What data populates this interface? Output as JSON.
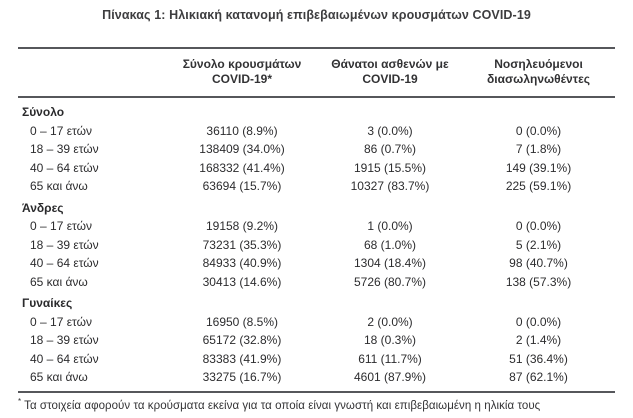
{
  "title": "Πίνακας 1: Ηλικιακή κατανομή επιβεβαιωμένων κρουσμάτων COVID-19",
  "table": {
    "columns": [
      {
        "line1": "Σύνολο κρουσμάτων",
        "line2": "COVID-19*"
      },
      {
        "line1": "Θάνατοι ασθενών με",
        "line2": "COVID-19"
      },
      {
        "line1": "Νοσηλευόμενοι",
        "line2": "διασωληνωθέντες"
      }
    ],
    "sections": [
      {
        "label": "Σύνολο",
        "rows": [
          [
            "0 – 17 ετών",
            "36110 (8.9%)",
            "3 (0.0%)",
            "0 (0.0%)"
          ],
          [
            "18 – 39 ετών",
            "138409 (34.0%)",
            "86 (0.7%)",
            "7 (1.8%)"
          ],
          [
            "40 – 64 ετών",
            "168332 (41.4%)",
            "1915 (15.5%)",
            "149 (39.1%)"
          ],
          [
            "65 και άνω",
            "63694 (15.7%)",
            "10327 (83.7%)",
            "225 (59.1%)"
          ]
        ]
      },
      {
        "label": "Άνδρες",
        "rows": [
          [
            "0 – 17 ετών",
            "19158 (9.2%)",
            "1 (0.0%)",
            "0 (0.0%)"
          ],
          [
            "18 – 39 ετών",
            "73231 (35.3%)",
            "68 (1.0%)",
            "5 (2.1%)"
          ],
          [
            "40 – 64 ετών",
            "84933 (40.9%)",
            "1304 (18.4%)",
            "98 (40.7%)"
          ],
          [
            "65 και άνω",
            "30413 (14.6%)",
            "5726 (80.7%)",
            "138 (57.3%)"
          ]
        ]
      },
      {
        "label": "Γυναίκες",
        "rows": [
          [
            "0 – 17 ετών",
            "16950 (8.5%)",
            "2 (0.0%)",
            "0 (0.0%)"
          ],
          [
            "18 – 39 ετών",
            "65172 (32.8%)",
            "18 (0.3%)",
            "2 (1.4%)"
          ],
          [
            "40 – 64 ετών",
            "83383 (41.9%)",
            "611 (11.7%)",
            "51 (36.4%)"
          ],
          [
            "65 και άνω",
            "33275 (16.7%)",
            "4601 (87.9%)",
            "87 (62.1%)"
          ]
        ]
      }
    ]
  },
  "footnote": {
    "marker": "*",
    "text": "Τα στοιχεία αφορούν τα κρούσματα εκείνα για τα οποία είναι γνωστή και επιβεβαιωμένη η ηλικία τους"
  }
}
